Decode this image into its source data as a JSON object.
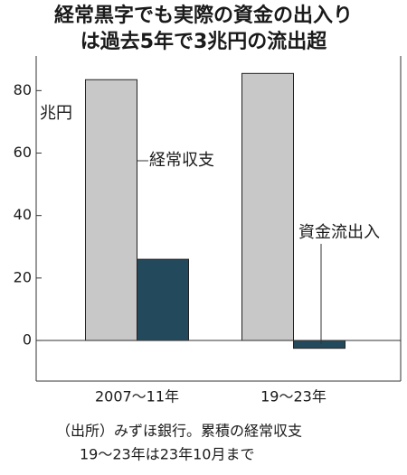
{
  "chart_data": {
    "type": "bar",
    "title": [
      "経常黒字でも実際の資金の出入り",
      "は過去5年で3兆円の流出超"
    ],
    "y_unit": "兆円",
    "categories": [
      "2007～11年",
      "19～23年"
    ],
    "series": [
      {
        "name": "経常収支",
        "color": "#c8c8c8",
        "values": [
          83.5,
          85.5
        ]
      },
      {
        "name": "資金流出入",
        "color": "#234a5c",
        "values": [
          26,
          -2.5
        ]
      }
    ],
    "ylim": [
      -13,
      96
    ],
    "yticks": [
      0,
      20,
      40,
      60,
      80
    ],
    "note": [
      "（出所）みずほ銀行。累積の経常収支",
      "19～23年は23年10月まで"
    ]
  }
}
